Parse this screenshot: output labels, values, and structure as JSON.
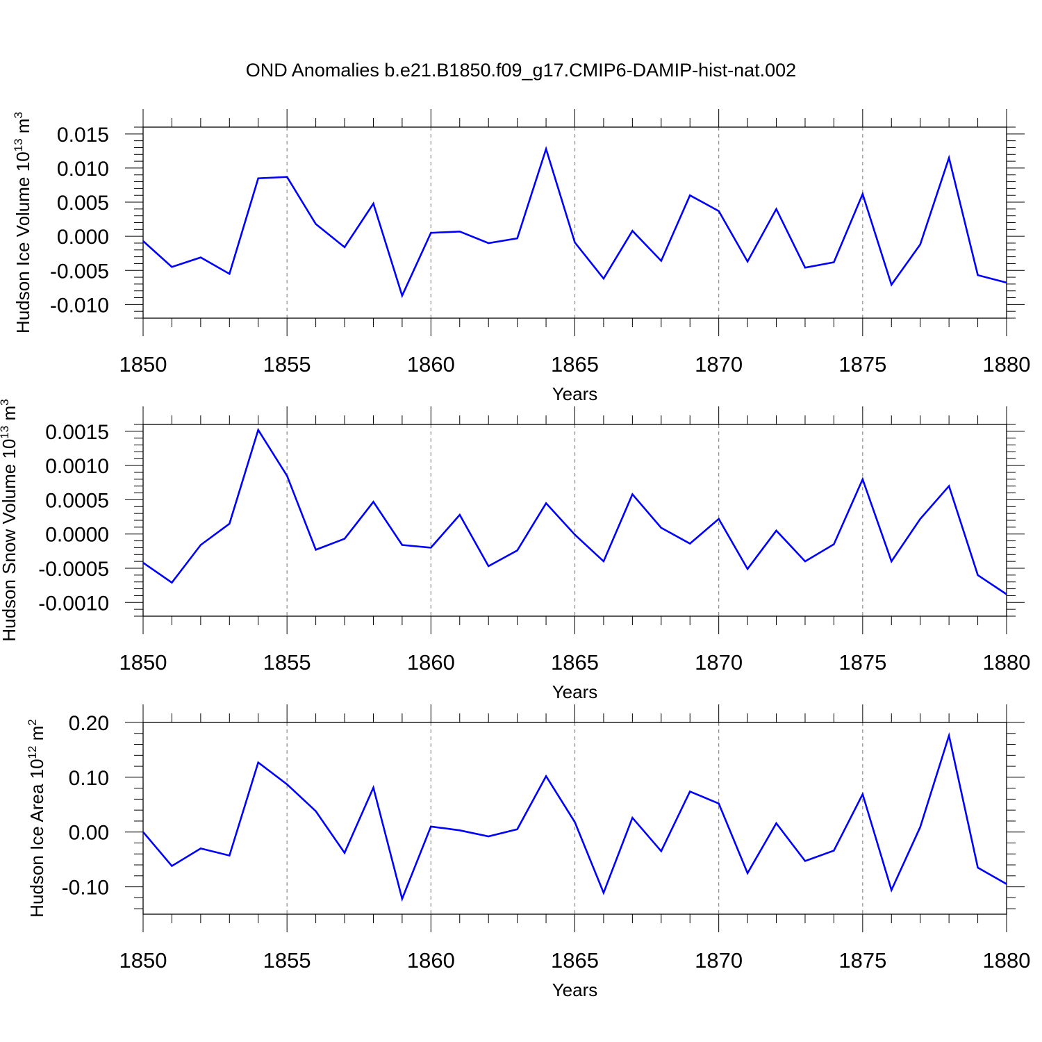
{
  "title": "OND Anomalies b.e21.B1850.f09_g17.CMIP6-DAMIP-hist-nat.002",
  "line_color": "#0000ff",
  "chart_data": [
    {
      "type": "line",
      "ylabel": "Hudson Ice Volume 10",
      "ylabel_exponent": "13",
      "ylabel_unit": "m",
      "ylabel_unit_exponent": "3",
      "xlabel": "Years",
      "xlim": [
        1850,
        1880
      ],
      "ylim": [
        -0.012,
        0.016
      ],
      "x_ticks": [
        "1850",
        "1855",
        "1860",
        "1865",
        "1870",
        "1875",
        "1880"
      ],
      "y_ticks": [
        "0.015",
        "0.010",
        "0.005",
        "0.000",
        "-0.005",
        "-0.010"
      ],
      "y_tick_values": [
        0.015,
        0.01,
        0.005,
        0.0,
        -0.005,
        -0.01
      ],
      "grid": "vertical dashed",
      "x": [
        1850,
        1851,
        1852,
        1853,
        1854,
        1855,
        1856,
        1857,
        1858,
        1859,
        1860,
        1861,
        1862,
        1863,
        1864,
        1865,
        1866,
        1867,
        1868,
        1869,
        1870,
        1871,
        1872,
        1873,
        1874,
        1875,
        1876,
        1877,
        1878,
        1879,
        1880
      ],
      "values": [
        -0.0007,
        -0.0045,
        -0.0031,
        -0.0055,
        0.0085,
        0.0087,
        0.0018,
        -0.0016,
        0.0048,
        -0.0087,
        0.0005,
        0.0007,
        -0.001,
        -0.0003,
        0.0128,
        -0.0009,
        -0.0062,
        0.0008,
        -0.0036,
        0.006,
        0.0037,
        -0.0037,
        0.004,
        -0.0046,
        -0.0038,
        0.0062,
        -0.0071,
        -0.0012,
        0.0115,
        -0.0057,
        -0.0068
      ]
    },
    {
      "type": "line",
      "ylabel": "Hudson Snow Volume 10",
      "ylabel_exponent": "13",
      "ylabel_unit": "m",
      "ylabel_unit_exponent": "3",
      "xlabel": "Years",
      "xlim": [
        1850,
        1880
      ],
      "ylim": [
        -0.0012,
        0.0016
      ],
      "x_ticks": [
        "1850",
        "1855",
        "1860",
        "1865",
        "1870",
        "1875",
        "1880"
      ],
      "y_ticks": [
        "0.0015",
        "0.0010",
        "0.0005",
        "0.0000",
        "-0.0005",
        "-0.0010"
      ],
      "y_tick_values": [
        0.0015,
        0.001,
        0.0005,
        0.0,
        -0.0005,
        -0.001
      ],
      "grid": "vertical dashed",
      "x": [
        1850,
        1851,
        1852,
        1853,
        1854,
        1855,
        1856,
        1857,
        1858,
        1859,
        1860,
        1861,
        1862,
        1863,
        1864,
        1865,
        1866,
        1867,
        1868,
        1869,
        1870,
        1871,
        1872,
        1873,
        1874,
        1875,
        1876,
        1877,
        1878,
        1879,
        1880
      ],
      "values": [
        -0.00042,
        -0.00071,
        -0.00016,
        0.00015,
        0.00152,
        0.00085,
        -0.00023,
        -7e-05,
        0.00047,
        -0.00016,
        -0.0002,
        0.00028,
        -0.00047,
        -0.00024,
        0.00045,
        -1e-05,
        -0.0004,
        0.00058,
        9e-05,
        -0.00014,
        0.00022,
        -0.00051,
        5e-05,
        -0.0004,
        -0.00015,
        0.0008,
        -0.0004,
        0.00022,
        0.0007,
        -0.0006,
        -0.00088
      ]
    },
    {
      "type": "line",
      "ylabel": "Hudson Ice Area 10",
      "ylabel_exponent": "12",
      "ylabel_unit": "m",
      "ylabel_unit_exponent": "2",
      "xlabel": "Years",
      "xlim": [
        1850,
        1880
      ],
      "ylim": [
        -0.15,
        0.2
      ],
      "x_ticks": [
        "1850",
        "1855",
        "1860",
        "1865",
        "1870",
        "1875",
        "1880"
      ],
      "y_ticks": [
        "0.20",
        "0.10",
        "0.00",
        "-0.10"
      ],
      "y_tick_values": [
        0.2,
        0.1,
        0.0,
        -0.1
      ],
      "grid": "vertical dashed",
      "x": [
        1850,
        1851,
        1852,
        1853,
        1854,
        1855,
        1856,
        1857,
        1858,
        1859,
        1860,
        1861,
        1862,
        1863,
        1864,
        1865,
        1866,
        1867,
        1868,
        1869,
        1870,
        1871,
        1872,
        1873,
        1874,
        1875,
        1876,
        1877,
        1878,
        1879,
        1880
      ],
      "values": [
        0.0,
        -0.062,
        -0.03,
        -0.043,
        0.127,
        0.087,
        0.038,
        -0.038,
        0.081,
        -0.122,
        0.01,
        0.003,
        -0.008,
        0.005,
        0.102,
        0.018,
        -0.111,
        0.026,
        -0.035,
        0.074,
        0.052,
        -0.075,
        0.016,
        -0.053,
        -0.034,
        0.069,
        -0.106,
        0.009,
        0.176,
        -0.065,
        -0.095
      ]
    }
  ]
}
